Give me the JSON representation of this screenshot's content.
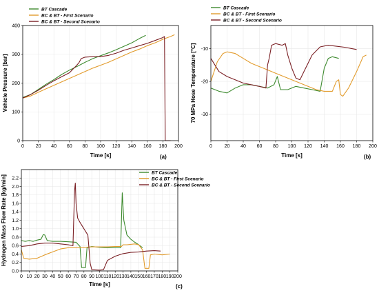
{
  "colors": {
    "bt": "#3d8a2e",
    "first": "#e29b2c",
    "second": "#7a1f24"
  },
  "chart_data": [
    {
      "type": "line",
      "panel_label": "(a)",
      "xlabel": "Time [s]",
      "ylabel": "Vehicle Pressure [bar]",
      "xlim": [
        0,
        200
      ],
      "ylim": [
        0,
        400
      ],
      "xticks": [
        0,
        20,
        40,
        60,
        80,
        100,
        120,
        140,
        160,
        180,
        200
      ],
      "yticks": [
        0,
        100,
        200,
        300,
        400
      ],
      "grid": true,
      "legend_position": "top-left",
      "series": [
        {
          "name": "BT Cascade",
          "color": "#3d8a2e",
          "points": [
            [
              0,
              150
            ],
            [
              10,
              160
            ],
            [
              20,
              178
            ],
            [
              30,
              196
            ],
            [
              40,
              212
            ],
            [
              50,
              230
            ],
            [
              60,
              245
            ],
            [
              70,
              258
            ],
            [
              80,
              272
            ],
            [
              90,
              285
            ],
            [
              100,
              295
            ],
            [
              110,
              305
            ],
            [
              120,
              316
            ],
            [
              130,
              328
            ],
            [
              140,
              340
            ],
            [
              150,
              355
            ],
            [
              158,
              366
            ]
          ]
        },
        {
          "name": "BC & BT - First Scenario",
          "color": "#e29b2c",
          "points": [
            [
              0,
              148
            ],
            [
              10,
              155
            ],
            [
              20,
              168
            ],
            [
              30,
              180
            ],
            [
              40,
              192
            ],
            [
              50,
              204
            ],
            [
              60,
              216
            ],
            [
              70,
              228
            ],
            [
              80,
              240
            ],
            [
              90,
              252
            ],
            [
              100,
              262
            ],
            [
              110,
              272
            ],
            [
              120,
              284
            ],
            [
              130,
              296
            ],
            [
              140,
              308
            ],
            [
              150,
              318
            ],
            [
              160,
              330
            ],
            [
              170,
              340
            ],
            [
              180,
              352
            ],
            [
              190,
              362
            ],
            [
              195,
              368
            ]
          ]
        },
        {
          "name": "BC & BT - Second Scenario",
          "color": "#7a1f24",
          "points": [
            [
              0,
              148
            ],
            [
              10,
              160
            ],
            [
              20,
              175
            ],
            [
              30,
              192
            ],
            [
              40,
              208
            ],
            [
              50,
              222
            ],
            [
              60,
              236
            ],
            [
              68,
              258
            ],
            [
              72,
              270
            ],
            [
              75,
              285
            ],
            [
              80,
              290
            ],
            [
              90,
              292
            ],
            [
              100,
              292
            ],
            [
              110,
              296
            ],
            [
              120,
              304
            ],
            [
              130,
              314
            ],
            [
              140,
              322
            ],
            [
              150,
              330
            ],
            [
              160,
              338
            ],
            [
              170,
              348
            ],
            [
              180,
              358
            ],
            [
              182,
              362
            ],
            [
              183,
              0
            ],
            [
              190,
              0
            ]
          ]
        }
      ]
    },
    {
      "type": "line",
      "panel_label": "(b)",
      "xlabel": "Time [s]",
      "ylabel": "70 MPa Hose Temperature [°C]",
      "xlim": [
        0,
        200
      ],
      "ylim": [
        -38,
        -3
      ],
      "xticks": [
        0,
        20,
        40,
        60,
        80,
        100,
        120,
        140,
        160,
        180,
        200
      ],
      "yticks": [
        -30,
        -20,
        -10
      ],
      "grid": true,
      "legend_position": "top-left",
      "series": [
        {
          "name": "BT Cascade",
          "color": "#3d8a2e",
          "points": [
            [
              0,
              -22
            ],
            [
              10,
              -23
            ],
            [
              20,
              -23.5
            ],
            [
              30,
              -22
            ],
            [
              40,
              -21
            ],
            [
              50,
              -21
            ],
            [
              60,
              -21.5
            ],
            [
              70,
              -22
            ],
            [
              78,
              -21
            ],
            [
              82,
              -18.5
            ],
            [
              86,
              -22.5
            ],
            [
              95,
              -22.5
            ],
            [
              105,
              -21.5
            ],
            [
              115,
              -22
            ],
            [
              125,
              -22.5
            ],
            [
              135,
              -23
            ],
            [
              140,
              -16
            ],
            [
              145,
              -13
            ],
            [
              150,
              -12.5
            ],
            [
              158,
              -13
            ]
          ]
        },
        {
          "name": "BC & BT - First Scenario",
          "color": "#e29b2c",
          "points": [
            [
              0,
              -20
            ],
            [
              8,
              -14
            ],
            [
              15,
              -11.5
            ],
            [
              20,
              -11
            ],
            [
              30,
              -11.5
            ],
            [
              40,
              -13
            ],
            [
              50,
              -14.5
            ],
            [
              60,
              -15.5
            ],
            [
              70,
              -16.5
            ],
            [
              80,
              -17.5
            ],
            [
              90,
              -18.5
            ],
            [
              100,
              -19.5
            ],
            [
              110,
              -20.5
            ],
            [
              120,
              -21.5
            ],
            [
              130,
              -22.5
            ],
            [
              140,
              -23
            ],
            [
              150,
              -23
            ],
            [
              155,
              -20
            ],
            [
              158,
              -19.5
            ],
            [
              160,
              -24
            ],
            [
              163,
              -24.5
            ],
            [
              170,
              -22
            ],
            [
              180,
              -17
            ],
            [
              188,
              -12.5
            ],
            [
              192,
              -12
            ]
          ]
        },
        {
          "name": "BC & BT - Second Scenario",
          "color": "#7a1f24",
          "points": [
            [
              0,
              -13
            ],
            [
              5,
              -15
            ],
            [
              10,
              -17
            ],
            [
              20,
              -18.5
            ],
            [
              30,
              -19.5
            ],
            [
              40,
              -20.5
            ],
            [
              50,
              -21
            ],
            [
              60,
              -21.5
            ],
            [
              68,
              -22
            ],
            [
              70,
              -15
            ],
            [
              72,
              -13
            ],
            [
              75,
              -9
            ],
            [
              80,
              -8.5
            ],
            [
              88,
              -9
            ],
            [
              92,
              -8.5
            ],
            [
              95,
              -12
            ],
            [
              100,
              -16
            ],
            [
              105,
              -19
            ],
            [
              110,
              -19.5
            ],
            [
              115,
              -17
            ],
            [
              125,
              -12
            ],
            [
              135,
              -9.5
            ],
            [
              145,
              -9
            ],
            [
              155,
              -9.3
            ],
            [
              165,
              -9.6
            ],
            [
              180,
              -10.3
            ]
          ]
        }
      ]
    },
    {
      "type": "line",
      "panel_label": "(c)",
      "xlabel": "Time [s]",
      "ylabel": "Hydrogen Mass Flow Rate [kg/min]",
      "xlim": [
        0,
        200
      ],
      "ylim": [
        0,
        2.4
      ],
      "xticks": [
        0,
        10,
        20,
        30,
        40,
        50,
        60,
        70,
        80,
        90,
        100,
        110,
        120,
        130,
        140,
        150,
        160,
        170,
        180,
        190,
        200
      ],
      "yticks": [
        0,
        0.2,
        0.4,
        0.6,
        0.8,
        1.0,
        1.2,
        1.4,
        1.6,
        1.8,
        2.0,
        2.2
      ],
      "grid": true,
      "legend_position": "top-right",
      "series": [
        {
          "name": "BT Cascade",
          "color": "#3d8a2e",
          "points": [
            [
              0,
              0.72
            ],
            [
              5,
              0.7
            ],
            [
              10,
              0.72
            ],
            [
              15,
              0.7
            ],
            [
              20,
              0.73
            ],
            [
              25,
              0.75
            ],
            [
              28,
              0.86
            ],
            [
              30,
              0.85
            ],
            [
              33,
              0.72
            ],
            [
              40,
              0.7
            ],
            [
              50,
              0.7
            ],
            [
              60,
              0.69
            ],
            [
              70,
              0.68
            ],
            [
              75,
              0.58
            ],
            [
              77,
              0.08
            ],
            [
              82,
              0.08
            ],
            [
              84,
              0.55
            ],
            [
              90,
              0.58
            ],
            [
              100,
              0.56
            ],
            [
              110,
              0.55
            ],
            [
              120,
              0.55
            ],
            [
              127,
              0.55
            ],
            [
              129,
              1.85
            ],
            [
              131,
              1.2
            ],
            [
              135,
              0.85
            ],
            [
              140,
              0.75
            ],
            [
              145,
              0.68
            ],
            [
              150,
              0.62
            ],
            [
              155,
              0.55
            ]
          ]
        },
        {
          "name": "BC & BT - First Scenario",
          "color": "#e29b2c",
          "points": [
            [
              0,
              0.5
            ],
            [
              3,
              0.3
            ],
            [
              10,
              0.28
            ],
            [
              20,
              0.3
            ],
            [
              30,
              0.38
            ],
            [
              40,
              0.45
            ],
            [
              50,
              0.52
            ],
            [
              60,
              0.55
            ],
            [
              70,
              0.55
            ],
            [
              80,
              0.56
            ],
            [
              90,
              0.57
            ],
            [
              100,
              0.57
            ],
            [
              110,
              0.57
            ],
            [
              120,
              0.58
            ],
            [
              128,
              0.58
            ],
            [
              130,
              0.62
            ],
            [
              135,
              0.62
            ],
            [
              145,
              0.64
            ],
            [
              150,
              0.62
            ],
            [
              155,
              0.5
            ],
            [
              158,
              0.06
            ],
            [
              163,
              0.06
            ],
            [
              165,
              0.38
            ],
            [
              170,
              0.4
            ],
            [
              180,
              0.38
            ],
            [
              190,
              0.4
            ]
          ]
        },
        {
          "name": "BC & BT - Second Scenario",
          "color": "#7a1f24",
          "points": [
            [
              0,
              0.58
            ],
            [
              10,
              0.6
            ],
            [
              20,
              0.64
            ],
            [
              30,
              0.66
            ],
            [
              40,
              0.66
            ],
            [
              50,
              0.64
            ],
            [
              60,
              0.62
            ],
            [
              66,
              0.6
            ],
            [
              68,
              1.9
            ],
            [
              69,
              2.08
            ],
            [
              70,
              1.6
            ],
            [
              72,
              1.25
            ],
            [
              75,
              1.15
            ],
            [
              80,
              1.0
            ],
            [
              85,
              0.85
            ],
            [
              88,
              0.18
            ],
            [
              90,
              0.03
            ],
            [
              100,
              0.02
            ],
            [
              105,
              0.03
            ],
            [
              110,
              0.25
            ],
            [
              120,
              0.35
            ],
            [
              130,
              0.41
            ],
            [
              140,
              0.44
            ],
            [
              150,
              0.45
            ],
            [
              160,
              0.47
            ],
            [
              170,
              0.48
            ],
            [
              178,
              0.47
            ]
          ]
        }
      ]
    }
  ]
}
